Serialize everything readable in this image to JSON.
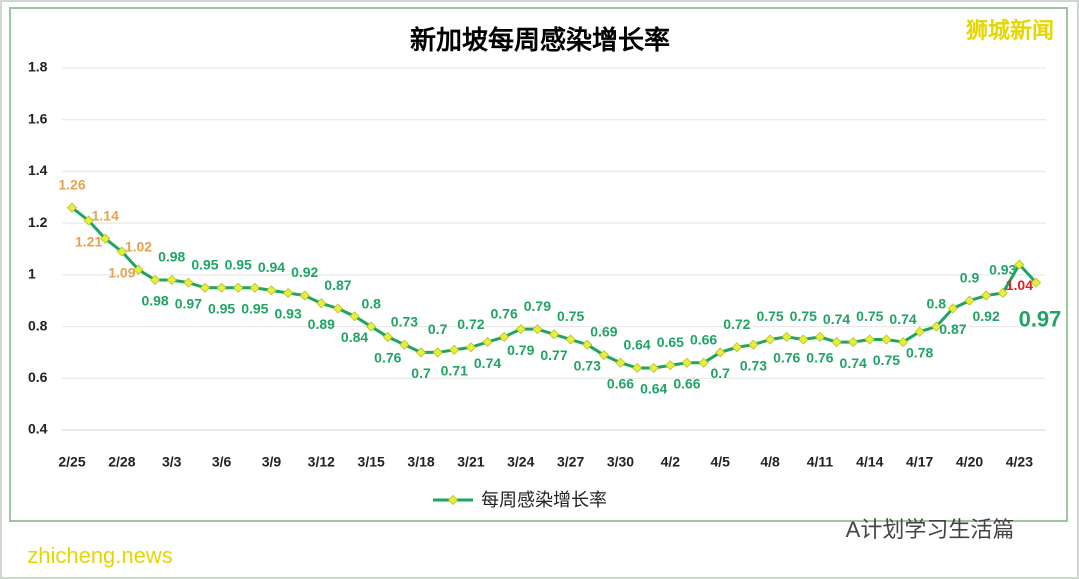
{
  "chart_data": {
    "type": "line",
    "title": "新加坡每周感染增长率",
    "annotations": [
      "狮城新闻",
      "A计划学习生活篇",
      "zhicheng.news"
    ],
    "categories": [
      "2/25",
      null,
      null,
      "2/28",
      null,
      null,
      "3/3",
      null,
      null,
      "3/6",
      null,
      null,
      "3/9",
      null,
      null,
      "3/12",
      null,
      null,
      "3/15",
      null,
      null,
      "3/18",
      null,
      null,
      "3/21",
      null,
      null,
      "3/24",
      null,
      null,
      "3/27",
      null,
      null,
      "3/30",
      null,
      null,
      "4/2",
      null,
      null,
      "4/5",
      null,
      null,
      "4/8",
      null,
      null,
      "4/11",
      null,
      null,
      "4/14",
      null,
      null,
      "4/17",
      null,
      null,
      "4/20",
      null,
      null,
      "4/23",
      null
    ],
    "series": [
      {
        "name": "每周感染增长率",
        "color": "#1fa463",
        "marker_color": "#e6f03c",
        "values": [
          1.26,
          1.21,
          1.14,
          1.09,
          1.02,
          0.98,
          0.98,
          0.97,
          0.95,
          0.95,
          0.95,
          0.95,
          0.94,
          0.93,
          0.92,
          0.89,
          0.87,
          0.84,
          0.8,
          0.76,
          0.73,
          0.7,
          0.7,
          0.71,
          0.72,
          0.74,
          0.76,
          0.79,
          0.79,
          0.77,
          0.75,
          0.73,
          0.69,
          0.66,
          0.64,
          0.64,
          0.65,
          0.66,
          0.66,
          0.7,
          0.72,
          0.73,
          0.75,
          0.76,
          0.75,
          0.76,
          0.74,
          0.74,
          0.75,
          0.75,
          0.74,
          0.78,
          0.8,
          0.87,
          0.9,
          0.92,
          0.93,
          1.04,
          0.97
        ],
        "label_colors": [
          "#e8a24e",
          "#e8a24e",
          "#e8a24e",
          "#e8a24e",
          "#e8a24e",
          "#1fa463",
          "#1fa463",
          "#1fa463",
          "#1fa463",
          "#1fa463",
          "#1fa463",
          "#1fa463",
          "#1fa463",
          "#1fa463",
          "#1fa463",
          "#1fa463",
          "#1fa463",
          "#1fa463",
          "#1fa463",
          "#1fa463",
          "#1fa463",
          "#1fa463",
          "#1fa463",
          "#1fa463",
          "#1fa463",
          "#1fa463",
          "#1fa463",
          "#1fa463",
          "#1fa463",
          "#1fa463",
          "#1fa463",
          "#1fa463",
          "#1fa463",
          "#1fa463",
          "#1fa463",
          "#1fa463",
          "#1fa463",
          "#1fa463",
          "#1fa463",
          "#1fa463",
          "#1fa463",
          "#1fa463",
          "#1fa463",
          "#1fa463",
          "#1fa463",
          "#1fa463",
          "#1fa463",
          "#1fa463",
          "#1fa463",
          "#1fa463",
          "#1fa463",
          "#1fa463",
          "#1fa463",
          "#1fa463",
          "#1fa463",
          "#1fa463",
          "#1fa463",
          "#e02020",
          "#1fa463"
        ]
      }
    ],
    "ylim": [
      0.4,
      1.8
    ],
    "yticks": [
      0.4,
      0.6,
      0.8,
      1,
      1.2,
      1.4,
      1.6,
      1.8
    ],
    "grid": true,
    "legend": "bottom"
  }
}
